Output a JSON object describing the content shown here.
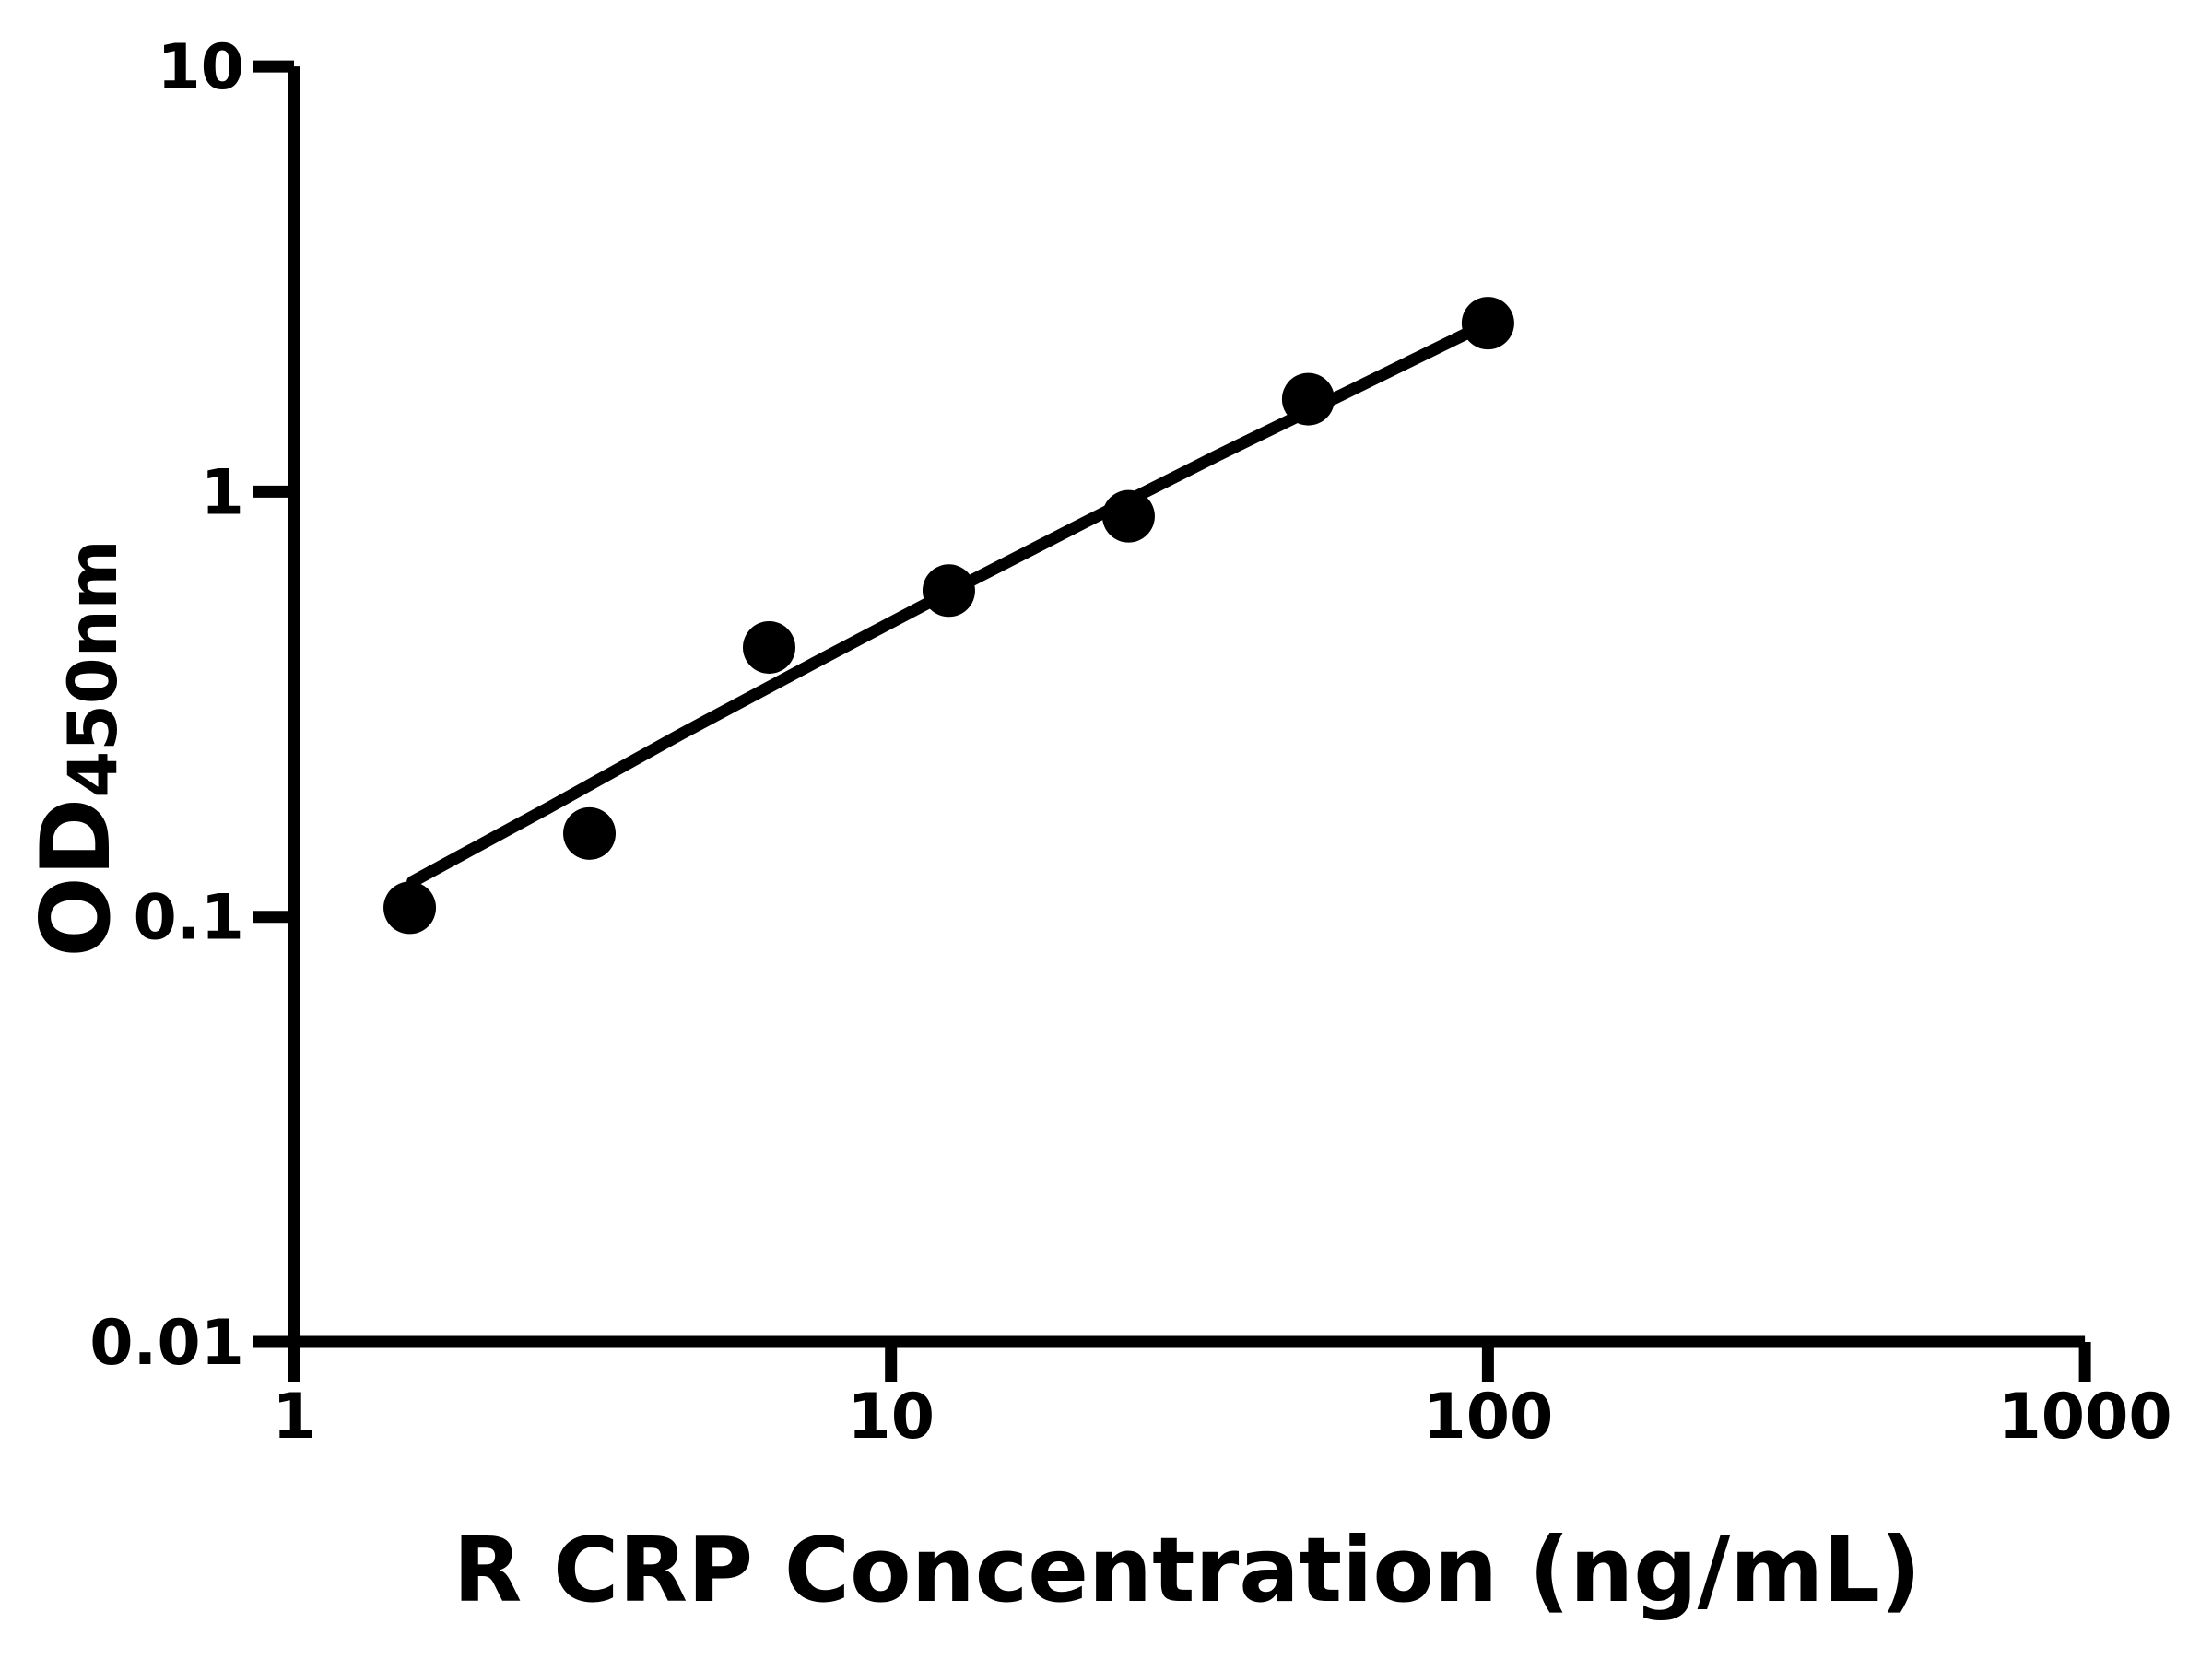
{
  "chart_data": {
    "type": "scatter",
    "title": "",
    "xlabel": "R CRP Concentration (ng/mL)",
    "ylabel": "OD450nm",
    "ylabel_main": "OD",
    "ylabel_sub": "450nm",
    "x_scale": "log",
    "y_scale": "log",
    "xlim": [
      1,
      1000
    ],
    "ylim": [
      0.01,
      10
    ],
    "x_ticks": [
      1,
      10,
      100,
      1000
    ],
    "x_tick_labels": [
      "1",
      "10",
      "100",
      "1000"
    ],
    "y_ticks": [
      0.01,
      0.1,
      1,
      10
    ],
    "y_tick_labels": [
      "0.01",
      "0.1",
      "1",
      "10"
    ],
    "grid": false,
    "legend": false,
    "background_color": "#ffffff",
    "axis_color": "#000000",
    "marker_color": "#000000",
    "line_color": "#000000",
    "points": [
      {
        "x": 1.5625,
        "y": 0.105
      },
      {
        "x": 3.125,
        "y": 0.157
      },
      {
        "x": 6.25,
        "y": 0.43
      },
      {
        "x": 12.5,
        "y": 0.585
      },
      {
        "x": 25,
        "y": 0.875
      },
      {
        "x": 50,
        "y": 1.65
      },
      {
        "x": 100,
        "y": 2.49
      }
    ],
    "fit_curve_points": [
      [
        1.58,
        0.121
      ],
      [
        2.66,
        0.18
      ],
      [
        4.45,
        0.269
      ],
      [
        7.48,
        0.397
      ],
      [
        12.55,
        0.582
      ],
      [
        21.1,
        0.846
      ],
      [
        35.4,
        1.22
      ],
      [
        59.9,
        1.75
      ],
      [
        100,
        2.49
      ]
    ]
  }
}
